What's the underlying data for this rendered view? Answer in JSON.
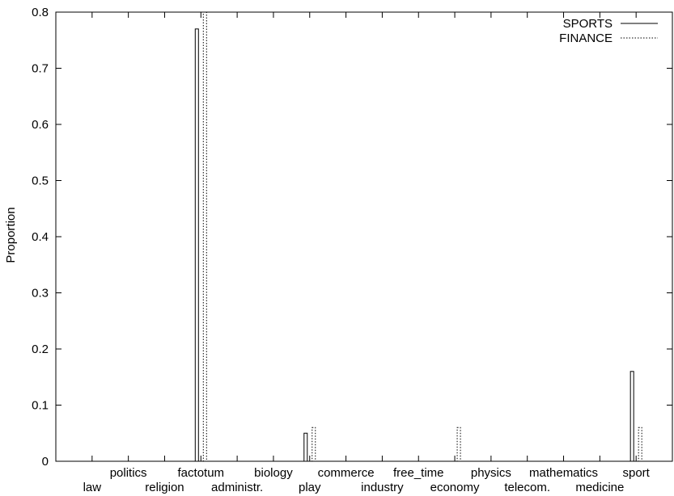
{
  "chart_data": {
    "type": "bar",
    "title": "",
    "xlabel": "",
    "ylabel": "Proportion",
    "ylim": [
      0,
      0.8
    ],
    "yticks": [
      0,
      0.1,
      0.2,
      0.3,
      0.4,
      0.5,
      0.6,
      0.7,
      0.8
    ],
    "ytick_labels": [
      "0",
      "0.1",
      "0.2",
      "0.3",
      "0.4",
      "0.5",
      "0.6",
      "0.7",
      "0.8"
    ],
    "categories": [
      "law",
      "politics",
      "religion",
      "factotum",
      "administr.",
      "biology",
      "play",
      "commerce",
      "industry",
      "free_time",
      "economy",
      "physics",
      "telecom.",
      "mathematics",
      "medicine",
      "sport"
    ],
    "series": [
      {
        "name": "SPORTS",
        "line_style": "solid",
        "values": [
          0,
          0,
          0,
          0.77,
          0,
          0,
          0.05,
          0,
          0,
          0,
          0,
          0,
          0,
          0,
          0,
          0.16
        ]
      },
      {
        "name": "FINANCE",
        "line_style": "dotted",
        "values": [
          0,
          0,
          0,
          0.8,
          0,
          0,
          0.06,
          0,
          0,
          0,
          0.06,
          0,
          0,
          0,
          0,
          0.06
        ]
      }
    ],
    "legend_position": "top-right",
    "grid": false
  }
}
